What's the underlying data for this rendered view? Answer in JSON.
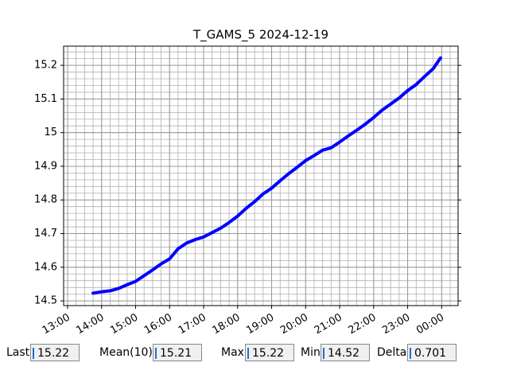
{
  "chart_data": {
    "type": "line",
    "title": "T_GAMS_5 2024-12-19",
    "x": [
      "13:45",
      "14:00",
      "14:15",
      "14:30",
      "14:45",
      "15:00",
      "15:15",
      "15:30",
      "15:45",
      "16:00",
      "16:15",
      "16:30",
      "16:45",
      "17:00",
      "17:15",
      "17:30",
      "17:45",
      "18:00",
      "18:15",
      "18:30",
      "18:45",
      "19:00",
      "19:15",
      "19:30",
      "19:45",
      "20:00",
      "20:15",
      "20:30",
      "20:45",
      "21:00",
      "21:15",
      "21:30",
      "21:45",
      "22:00",
      "22:15",
      "22:30",
      "22:45",
      "23:00",
      "23:15",
      "23:30",
      "23:45",
      "23:58"
    ],
    "series": [
      {
        "color": "#0000ff",
        "values": [
          14.523,
          14.527,
          14.53,
          14.537,
          14.548,
          14.558,
          14.575,
          14.592,
          14.61,
          14.625,
          14.655,
          14.672,
          14.682,
          14.69,
          14.703,
          14.716,
          14.733,
          14.752,
          14.775,
          14.795,
          14.818,
          14.835,
          14.857,
          14.878,
          14.897,
          14.917,
          14.932,
          14.948,
          14.955,
          14.972,
          14.99,
          15.007,
          15.025,
          15.045,
          15.067,
          15.085,
          15.103,
          15.125,
          15.143,
          15.167,
          15.19,
          15.222
        ]
      }
    ],
    "xlim": [
      "12:53",
      "00:29"
    ],
    "xticks": [
      "13:00",
      "14:00",
      "15:00",
      "16:00",
      "17:00",
      "18:00",
      "19:00",
      "20:00",
      "21:00",
      "22:00",
      "23:00",
      "00:00"
    ],
    "ylim": [
      14.486,
      15.257
    ],
    "yticks": [
      14.5,
      14.6,
      14.7,
      14.8,
      14.9,
      15.0,
      15.1,
      15.2
    ],
    "grid": true,
    "minor_x_per_major": 4,
    "minor_y_per_major": 5
  },
  "controls": [
    {
      "label": "Last",
      "value": "15.22"
    },
    {
      "label": "Mean(10)",
      "value": "15.21"
    },
    {
      "label": "Max",
      "value": "15.22"
    },
    {
      "label": "Min",
      "value": "14.52"
    },
    {
      "label": "Delta",
      "value": "0.701"
    }
  ]
}
